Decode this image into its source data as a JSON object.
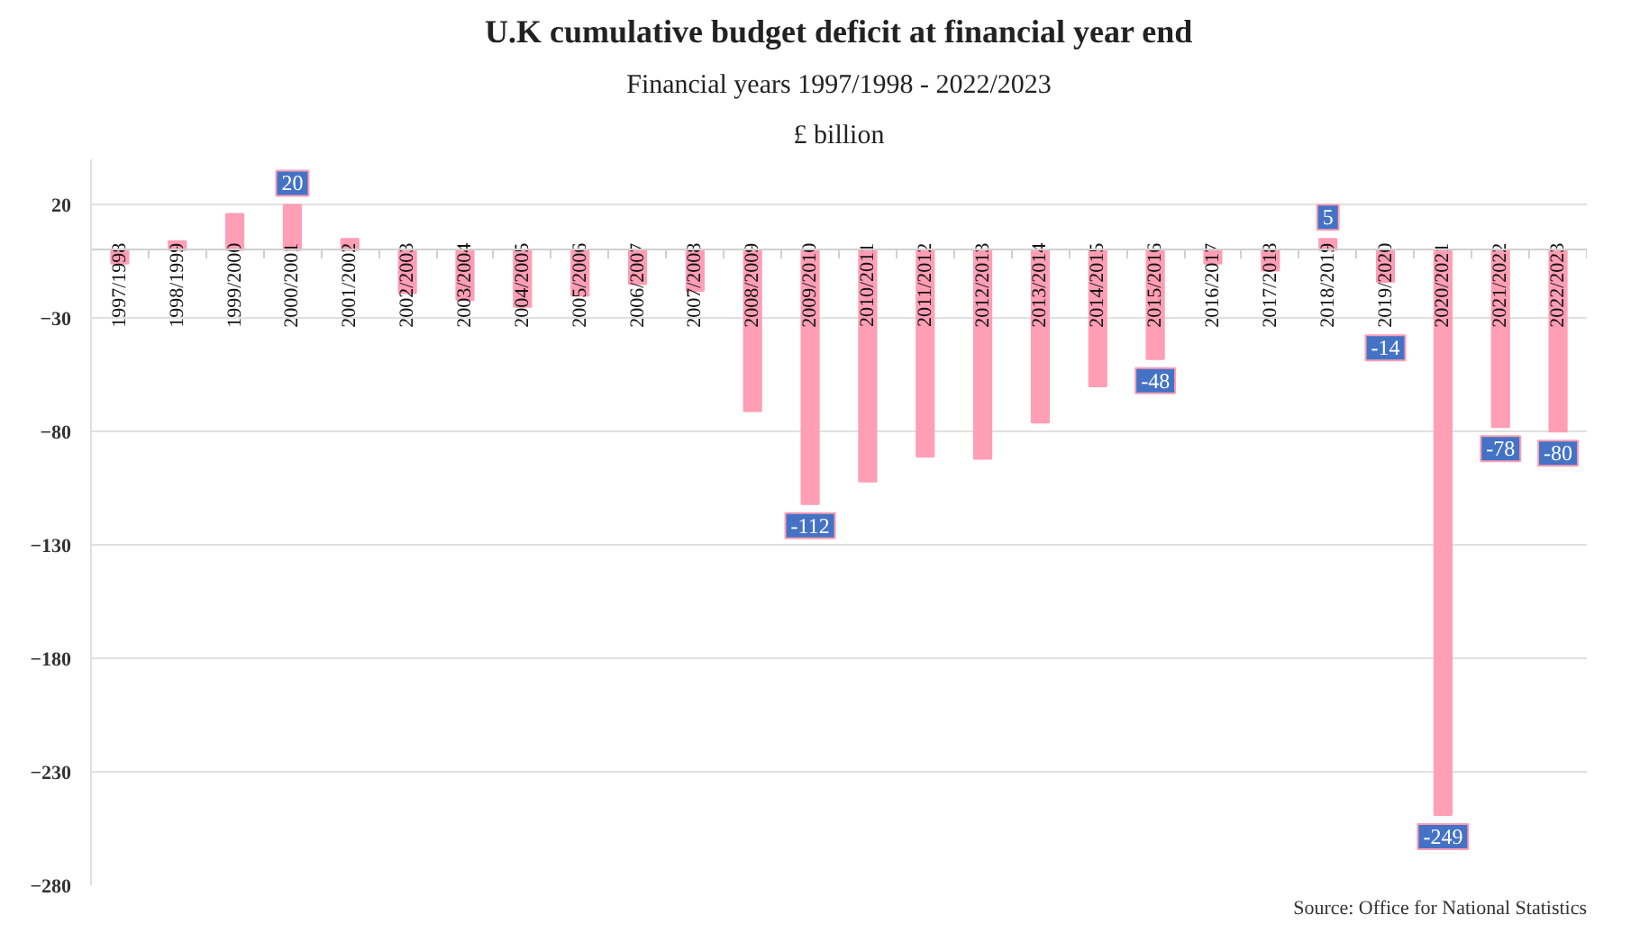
{
  "chart_data": {
    "type": "bar",
    "title": "U.K cumulative budget deficit at financial year end",
    "subtitle": "Financial years 1997/1998 - 2022/2023",
    "ylabel": "£ billion",
    "categories": [
      "1997/1998",
      "1998/1999",
      "1999/2000",
      "2000/2001",
      "2001/2002",
      "2002/2003",
      "2003/2004",
      "2004/2005",
      "2005/2006",
      "2006/2007",
      "2007/2008",
      "2008/2009",
      "2009/2010",
      "2010/2011",
      "2011/2012",
      "2012/2013",
      "2013/2014",
      "2014/2015",
      "2015/2016",
      "2016/2017",
      "2017/2018",
      "2018/2019",
      "2019/2020",
      "2020/2021",
      "2021/2022",
      "2022/2023"
    ],
    "values": [
      -6,
      4,
      16,
      20,
      5,
      -19,
      -22,
      -25,
      -20,
      -15,
      -18,
      -71,
      -112,
      -102,
      -91,
      -92,
      -76,
      -60,
      -48,
      -6,
      -9,
      5,
      -14,
      -249,
      -78,
      -80
    ],
    "value_labels": [
      null,
      null,
      null,
      "20",
      null,
      null,
      null,
      null,
      null,
      null,
      null,
      null,
      "-112",
      null,
      null,
      null,
      null,
      null,
      "-48",
      null,
      null,
      "5",
      "-14",
      "-249",
      "-78",
      "-80"
    ],
    "color": "#ff9eb5",
    "ylim": [
      -280,
      40
    ],
    "yticks": [
      20,
      -30,
      -80,
      -130,
      -180,
      -230,
      -280
    ],
    "grid": "y",
    "annotations": [
      "Source: Office for National Statistics"
    ]
  }
}
